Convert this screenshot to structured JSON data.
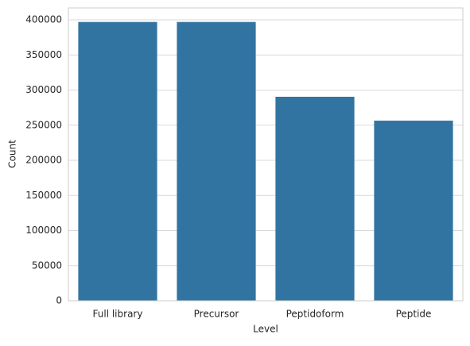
{
  "chart_data": {
    "type": "bar",
    "x_label": "Level",
    "y_label": "Count",
    "categories": [
      "Full library",
      "Precursor",
      "Peptidoform",
      "Peptide"
    ],
    "values": [
      397000,
      397000,
      290500,
      256500
    ],
    "color": "#3274a1",
    "ylim": [
      0,
      417000
    ],
    "yticks": [
      0,
      50000,
      100000,
      150000,
      200000,
      250000,
      300000,
      350000,
      400000
    ],
    "grid": true
  }
}
